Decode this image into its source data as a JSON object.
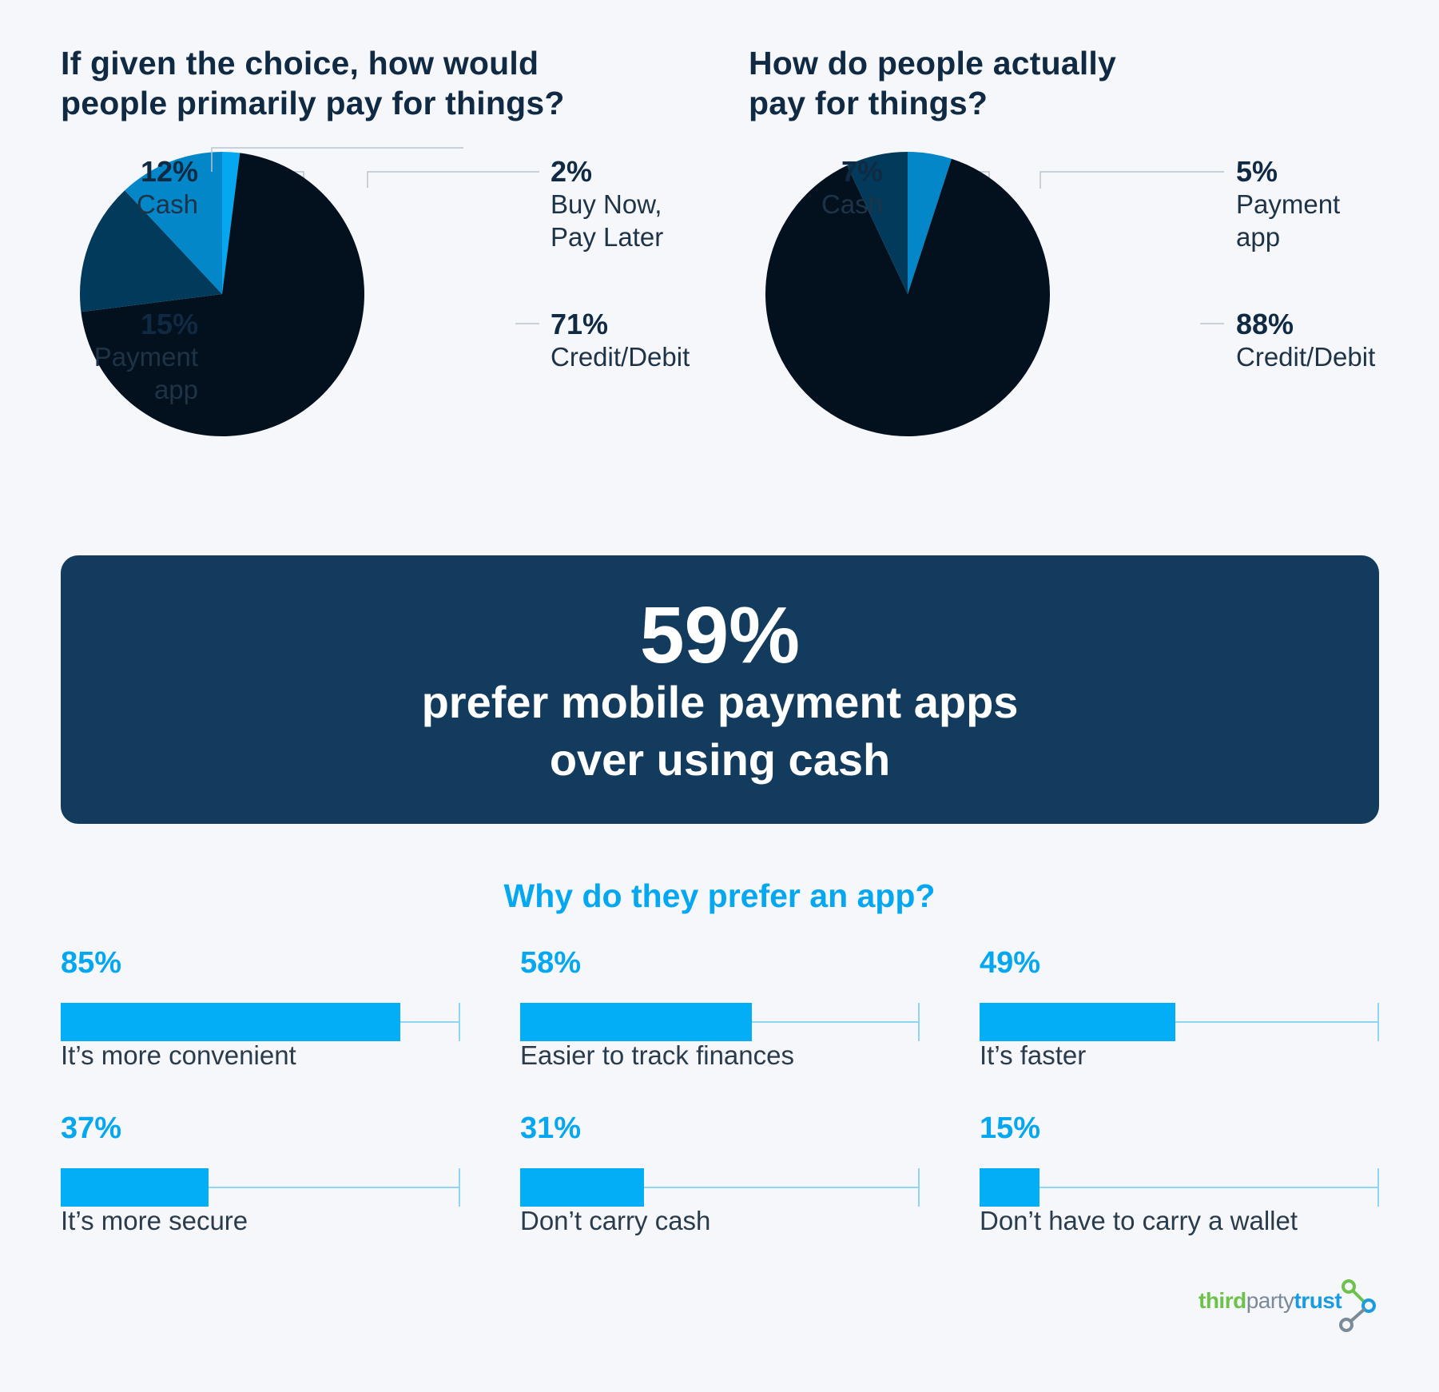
{
  "pie1": {
    "title_lines": [
      "If given the choice, how would",
      "people primarily pay for things?"
    ]
  },
  "pie2": {
    "title_lines": [
      "How do people actually",
      "pay for things?"
    ]
  },
  "banner": {
    "number": "59%",
    "text_lines": [
      "prefer mobile payment apps",
      "over using cash"
    ]
  },
  "bars": {
    "title": "Why do they prefer an app?"
  },
  "logo": {
    "part1": "third",
    "part2": "party",
    "part3": "trust",
    "mark_icon": "link-node-icon"
  },
  "colors": {
    "background": "#f5f7fa",
    "darkest": "#03111f",
    "dark_navy": "#023a5b",
    "mid_blue": "#0387c8",
    "bright_blue": "#04a7f0",
    "banner": "#123b5e"
  },
  "chart_data": [
    {
      "type": "pie",
      "title": "If given the choice, how would people primarily pay for things?",
      "slices": [
        {
          "label_lines": [
            "Buy Now,",
            "Pay Later"
          ],
          "pct_label": "2%",
          "value": 2,
          "color": "#04a7f0"
        },
        {
          "label_lines": [
            "Credit/Debit"
          ],
          "pct_label": "71%",
          "value": 71,
          "color": "#03111f"
        },
        {
          "label_lines": [
            "Payment",
            "app"
          ],
          "pct_label": "15%",
          "value": 15,
          "color": "#023a5b"
        },
        {
          "label_lines": [
            "Cash"
          ],
          "pct_label": "12%",
          "value": 12,
          "color": "#0387c8"
        }
      ]
    },
    {
      "type": "pie",
      "title": "How do people actually pay for things?",
      "slices": [
        {
          "label_lines": [
            "Payment",
            "app"
          ],
          "pct_label": "5%",
          "value": 5,
          "color": "#0387c8"
        },
        {
          "label_lines": [
            "Credit/Debit"
          ],
          "pct_label": "88%",
          "value": 88,
          "color": "#03111f"
        },
        {
          "label_lines": [
            "Cash"
          ],
          "pct_label": "7%",
          "value": 7,
          "color": "#023a5b"
        }
      ]
    },
    {
      "type": "bar",
      "title": "Why do they prefer an app?",
      "categories": [
        "It’s more convenient",
        "Easier to track finances",
        "It’s faster",
        "It’s more secure",
        "Don’t carry cash",
        "Don’t have to carry a wallet"
      ],
      "values": [
        85,
        58,
        49,
        37,
        31,
        15
      ],
      "value_labels": [
        "85%",
        "58%",
        "49%",
        "37%",
        "31%",
        "15%"
      ],
      "ylim": [
        0,
        100
      ]
    }
  ]
}
